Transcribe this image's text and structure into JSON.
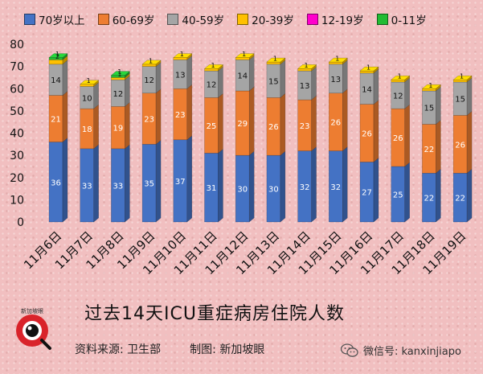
{
  "chart_data": {
    "type": "bar",
    "stacked": true,
    "title": "过去14天ICU重症病房住院人数",
    "categories": [
      "11月6日",
      "11月7日",
      "11月8日",
      "11月9日",
      "11月10日",
      "11月11日",
      "11月12日",
      "11月13日",
      "11月14日",
      "11月15日",
      "11月16日",
      "11月17日",
      "11月18日",
      "11月19日"
    ],
    "series": [
      {
        "name": "70岁以上",
        "color": "#4472c4",
        "values": [
          36,
          33,
          33,
          35,
          37,
          31,
          30,
          30,
          32,
          32,
          27,
          25,
          22,
          22
        ]
      },
      {
        "name": "60-69岁",
        "color": "#ed7d31",
        "values": [
          21,
          18,
          19,
          23,
          23,
          25,
          29,
          26,
          23,
          26,
          26,
          26,
          22,
          26
        ]
      },
      {
        "name": "40-59岁",
        "color": "#a5a5a5",
        "values": [
          14,
          10,
          12,
          12,
          13,
          12,
          14,
          15,
          13,
          13,
          14,
          12,
          15,
          15
        ]
      },
      {
        "name": "20-39岁",
        "color": "#ffc000",
        "values": [
          2,
          1,
          1,
          1,
          1,
          1,
          1,
          1,
          1,
          1,
          1,
          1,
          1,
          1
        ]
      },
      {
        "name": "12-19岁",
        "color": "#ff00cc",
        "values": [
          0,
          0,
          0,
          0,
          0,
          0,
          0,
          0,
          0,
          0,
          0,
          0,
          0,
          0
        ]
      },
      {
        "name": "0-11岁",
        "color": "#22bb33",
        "values": [
          1,
          0,
          1,
          0,
          0,
          0,
          0,
          0,
          0,
          0,
          0,
          0,
          0,
          0
        ]
      }
    ],
    "segment_labels": [
      [
        "36",
        "21",
        "14",
        "2",
        "",
        "1"
      ],
      [
        "33",
        "18",
        "10",
        "1",
        "",
        ""
      ],
      [
        "33",
        "19",
        "12",
        "1",
        "",
        "1"
      ],
      [
        "35",
        "23",
        "12",
        "1",
        "",
        ""
      ],
      [
        "37",
        "23",
        "13",
        "1",
        "",
        ""
      ],
      [
        "31",
        "25",
        "12",
        "1",
        "",
        ""
      ],
      [
        "30",
        "29",
        "14",
        "1",
        "",
        ""
      ],
      [
        "30",
        "26",
        "15",
        "1",
        "",
        ""
      ],
      [
        "32",
        "23",
        "13",
        "1",
        "",
        ""
      ],
      [
        "32",
        "26",
        "13",
        "1",
        "",
        ""
      ],
      [
        "27",
        "26",
        "14",
        "1",
        "",
        ""
      ],
      [
        "25",
        "26",
        "12",
        "1",
        "",
        ""
      ],
      [
        "22",
        "22",
        "15",
        "1",
        "",
        ""
      ],
      [
        "22",
        "26",
        "15",
        "1",
        "",
        ""
      ]
    ],
    "ylim": [
      0,
      80
    ],
    "yticks": [
      0,
      10,
      20,
      30,
      40,
      50,
      60,
      70,
      80
    ],
    "ytick_labels": [
      "0",
      "10",
      "20",
      "30",
      "40",
      "50",
      "60",
      "70",
      "80"
    ],
    "legend_position": "top",
    "grid": false
  },
  "footer": {
    "title": "过去14天ICU重症病房住院人数",
    "source": "资料来源:  卫生部",
    "credit": "制图:  新加坡眼",
    "logo_text": "新加坡眼",
    "wechat": "微信号: kanxinjiapo"
  },
  "colors": {
    "background": "#f1bfc0"
  }
}
